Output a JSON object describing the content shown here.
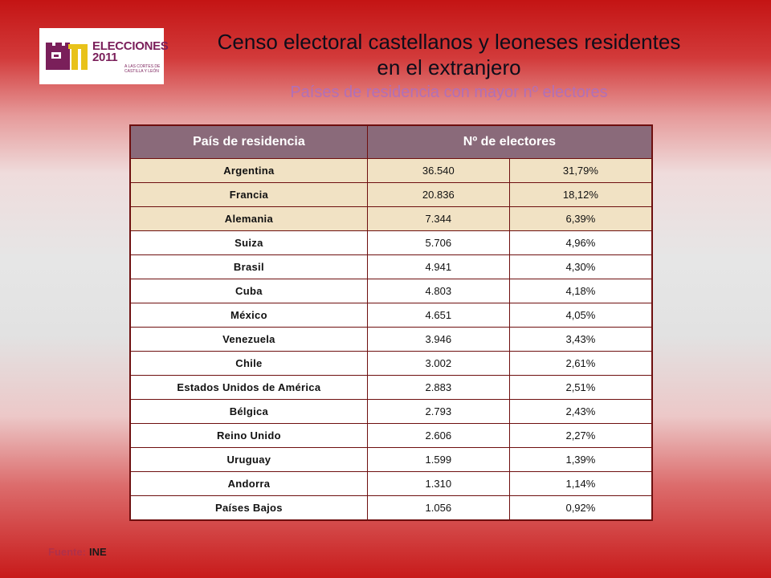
{
  "logo": {
    "word_top": "ELECCIONES",
    "word_bottom": "2011",
    "sub_line1": "A LAS CORTES DE",
    "sub_line2": "CASTILLA Y LEÓN",
    "colors": {
      "maroon": "#7a1f5a",
      "yellow": "#e8c21a"
    }
  },
  "header": {
    "title_line1": "Censo electoral castellanos y leoneses residentes",
    "title_line2": "en el extranjero",
    "subtitle": "Países de residencia con mayor nº electores"
  },
  "table": {
    "columns": [
      "País de residencia",
      "Nº de electores"
    ],
    "rows": [
      {
        "country": "Argentina",
        "electors": "36.540",
        "percent": "31,79%",
        "highlight": true
      },
      {
        "country": "Francia",
        "electors": "20.836",
        "percent": "18,12%",
        "highlight": true
      },
      {
        "country": "Alemania",
        "electors": "7.344",
        "percent": "6,39%",
        "highlight": true
      },
      {
        "country": "Suiza",
        "electors": "5.706",
        "percent": "4,96%",
        "highlight": false
      },
      {
        "country": "Brasil",
        "electors": "4.941",
        "percent": "4,30%",
        "highlight": false
      },
      {
        "country": "Cuba",
        "electors": "4.803",
        "percent": "4,18%",
        "highlight": false
      },
      {
        "country": "México",
        "electors": "4.651",
        "percent": "4,05%",
        "highlight": false
      },
      {
        "country": "Venezuela",
        "electors": "3.946",
        "percent": "3,43%",
        "highlight": false
      },
      {
        "country": "Chile",
        "electors": "3.002",
        "percent": "2,61%",
        "highlight": false
      },
      {
        "country": "Estados Unidos de América",
        "electors": "2.883",
        "percent": "2,51%",
        "highlight": false
      },
      {
        "country": "Bélgica",
        "electors": "2.793",
        "percent": "2,43%",
        "highlight": false
      },
      {
        "country": "Reino Unido",
        "electors": "2.606",
        "percent": "2,27%",
        "highlight": false
      },
      {
        "country": "Uruguay",
        "electors": "1.599",
        "percent": "1,39%",
        "highlight": false
      },
      {
        "country": "Andorra",
        "electors": "1.310",
        "percent": "1,14%",
        "highlight": false
      },
      {
        "country": "Países Bajos",
        "electors": "1.056",
        "percent": "0,92%",
        "highlight": false
      }
    ]
  },
  "source": {
    "label": "Fuente:",
    "value": "INE"
  },
  "colors": {
    "header_bg": "#8a6a7a",
    "highlight_bg": "#f1e2c4",
    "border": "#6e0f0f"
  }
}
